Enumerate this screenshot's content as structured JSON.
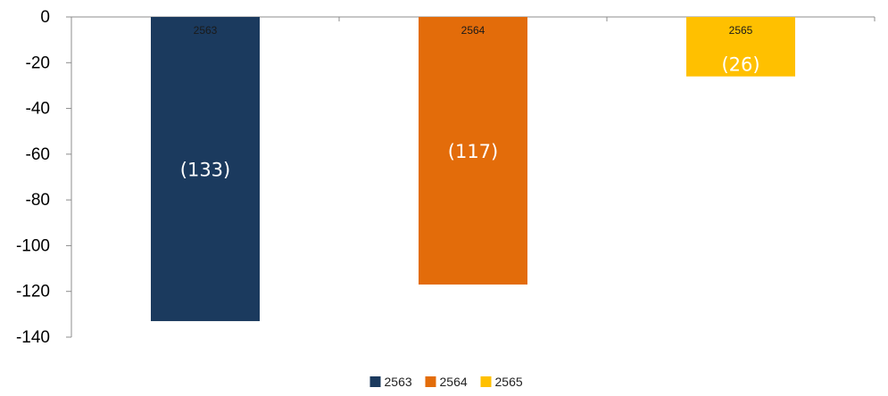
{
  "chart_data": {
    "type": "bar",
    "title": "",
    "xlabel": "",
    "ylabel": "",
    "categories": [
      "2563",
      "2564",
      "2565"
    ],
    "values": [
      -133,
      -117,
      -26
    ],
    "data_labels": [
      "(133)",
      "(117)",
      "(26)"
    ],
    "colors": [
      "#1b3a5e",
      "#e36c0a",
      "#ffc000"
    ],
    "ylim": [
      -140,
      0
    ],
    "yticks": [
      0,
      -20,
      -40,
      -60,
      -80,
      -100,
      -120,
      -140
    ],
    "grid": false,
    "legend": {
      "position": "bottom",
      "entries": [
        "2563",
        "2564",
        "2565"
      ]
    }
  }
}
